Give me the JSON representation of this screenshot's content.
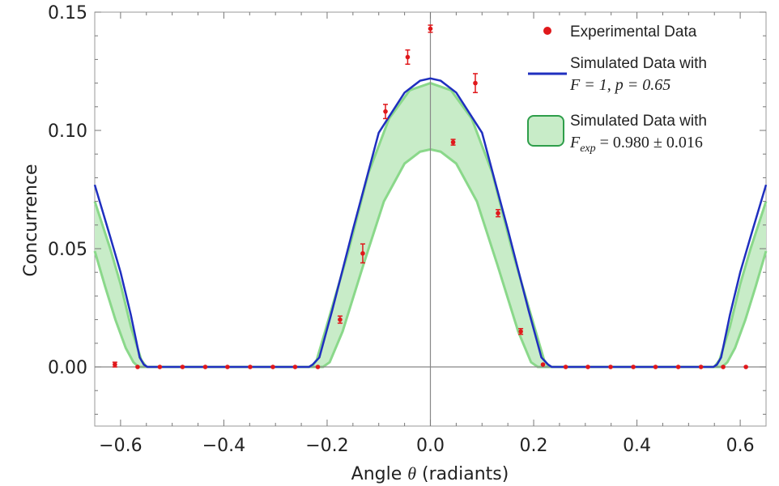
{
  "chart_data": {
    "type": "scatter",
    "xlabel_prefix": "Angle ",
    "xlabel_symbol": "θ",
    "xlabel_suffix": " (radiants)",
    "ylabel": "Concurrence",
    "xlim": [
      -0.65,
      0.65
    ],
    "ylim": [
      -0.025,
      0.15
    ],
    "xticks": [
      -0.6,
      -0.4,
      -0.2,
      0.0,
      0.2,
      0.4,
      0.6
    ],
    "xtick_labels": [
      "−0.6",
      "−0.4",
      "−0.2",
      "0.0",
      "0.2",
      "0.4",
      "0.6"
    ],
    "yticks": [
      0.0,
      0.05,
      0.1,
      0.15
    ],
    "ytick_labels": [
      "0.00",
      "0.05",
      "0.10",
      "0.15"
    ],
    "colors": {
      "points": "#e0181b",
      "sim_line": "#1f2fbf",
      "band_fill": "#c8ecc8",
      "band_edge": "#8ad88a",
      "legend_box_edge": "#2e9e4a",
      "axis": "#888888"
    },
    "legend": {
      "points_label": "Experimental Data",
      "line_label_1": "Simulated Data with",
      "line_label_2": "F = 1, p = 0.65",
      "band_label_1": "Simulated Data with",
      "band_label_2_pre": "F",
      "band_label_2_sub": "exp",
      "band_label_2_post": " = 0.980 ± 0.016"
    },
    "series": [
      {
        "name": "Experimental Data",
        "kind": "points",
        "x": [
          -0.611,
          -0.567,
          -0.524,
          -0.48,
          -0.436,
          -0.393,
          -0.349,
          -0.305,
          -0.262,
          -0.218,
          -0.175,
          -0.131,
          -0.087,
          -0.044,
          0.0,
          0.044,
          0.087,
          0.131,
          0.175,
          0.218,
          0.262,
          0.305,
          0.349,
          0.393,
          0.436,
          0.48,
          0.524,
          0.567,
          0.611
        ],
        "y": [
          0.001,
          0.0,
          0.0,
          0.0,
          0.0,
          0.0,
          0.0,
          0.0,
          0.0,
          0.0,
          0.02,
          0.048,
          0.108,
          0.131,
          0.143,
          0.095,
          0.12,
          0.065,
          0.015,
          0.001,
          0.0,
          0.0,
          0.0,
          0.0,
          0.0,
          0.0,
          0.0,
          0.0,
          0.0
        ],
        "yerr": [
          0.001,
          0.0,
          0.0,
          0.0,
          0.0,
          0.0,
          0.0,
          0.0,
          0.0,
          0.0,
          0.0015,
          0.004,
          0.003,
          0.003,
          0.0015,
          0.0012,
          0.004,
          0.0015,
          0.0012,
          0.0,
          0.0,
          0.0,
          0.0,
          0.0,
          0.0,
          0.0,
          0.0,
          0.0,
          0.0
        ]
      },
      {
        "name": "Simulated Data with F = 1, p = 0.65",
        "kind": "line",
        "x": [
          -0.65,
          -0.62,
          -0.6,
          -0.58,
          -0.563,
          -0.555,
          -0.548,
          -0.235,
          -0.228,
          -0.215,
          -0.19,
          -0.15,
          -0.1,
          -0.05,
          -0.02,
          0.0,
          0.02,
          0.05,
          0.1,
          0.15,
          0.19,
          0.215,
          0.228,
          0.235,
          0.548,
          0.555,
          0.563,
          0.58,
          0.6,
          0.62,
          0.65
        ],
        "y": [
          0.077,
          0.055,
          0.04,
          0.022,
          0.004,
          0.001,
          0.0,
          0.0,
          0.001,
          0.004,
          0.024,
          0.058,
          0.099,
          0.116,
          0.121,
          0.122,
          0.121,
          0.116,
          0.099,
          0.058,
          0.024,
          0.004,
          0.001,
          0.0,
          0.0,
          0.001,
          0.004,
          0.022,
          0.04,
          0.055,
          0.077
        ]
      },
      {
        "name": "Simulated Data with Fexp = 0.980 ± 0.016 (upper)",
        "kind": "band_upper",
        "x": [
          -0.65,
          -0.62,
          -0.6,
          -0.58,
          -0.56,
          -0.55,
          -0.54,
          -0.24,
          -0.23,
          -0.22,
          -0.2,
          -0.16,
          -0.12,
          -0.08,
          -0.04,
          0.0,
          0.04,
          0.08,
          0.12,
          0.16,
          0.2,
          0.22,
          0.23,
          0.24,
          0.54,
          0.55,
          0.56,
          0.58,
          0.6,
          0.62,
          0.65
        ],
        "y": [
          0.07,
          0.05,
          0.035,
          0.017,
          0.003,
          0.0,
          0.0,
          0.0,
          0.0,
          0.003,
          0.018,
          0.048,
          0.082,
          0.105,
          0.117,
          0.12,
          0.117,
          0.105,
          0.082,
          0.048,
          0.018,
          0.003,
          0.0,
          0.0,
          0.0,
          0.0,
          0.003,
          0.017,
          0.035,
          0.05,
          0.07
        ]
      },
      {
        "name": "Simulated Data with Fexp = 0.980 ± 0.016 (lower)",
        "kind": "band_lower",
        "x": [
          -0.65,
          -0.63,
          -0.61,
          -0.59,
          -0.575,
          -0.565,
          -0.555,
          -0.218,
          -0.208,
          -0.195,
          -0.17,
          -0.13,
          -0.09,
          -0.05,
          -0.02,
          0.0,
          0.02,
          0.05,
          0.09,
          0.13,
          0.17,
          0.195,
          0.208,
          0.218,
          0.555,
          0.565,
          0.575,
          0.59,
          0.61,
          0.63,
          0.65
        ],
        "y": [
          0.049,
          0.034,
          0.02,
          0.008,
          0.002,
          0.0,
          0.0,
          0.0,
          0.0,
          0.002,
          0.015,
          0.043,
          0.07,
          0.086,
          0.091,
          0.092,
          0.091,
          0.086,
          0.07,
          0.043,
          0.015,
          0.002,
          0.0,
          0.0,
          0.0,
          0.0,
          0.002,
          0.008,
          0.02,
          0.034,
          0.049
        ]
      }
    ]
  }
}
